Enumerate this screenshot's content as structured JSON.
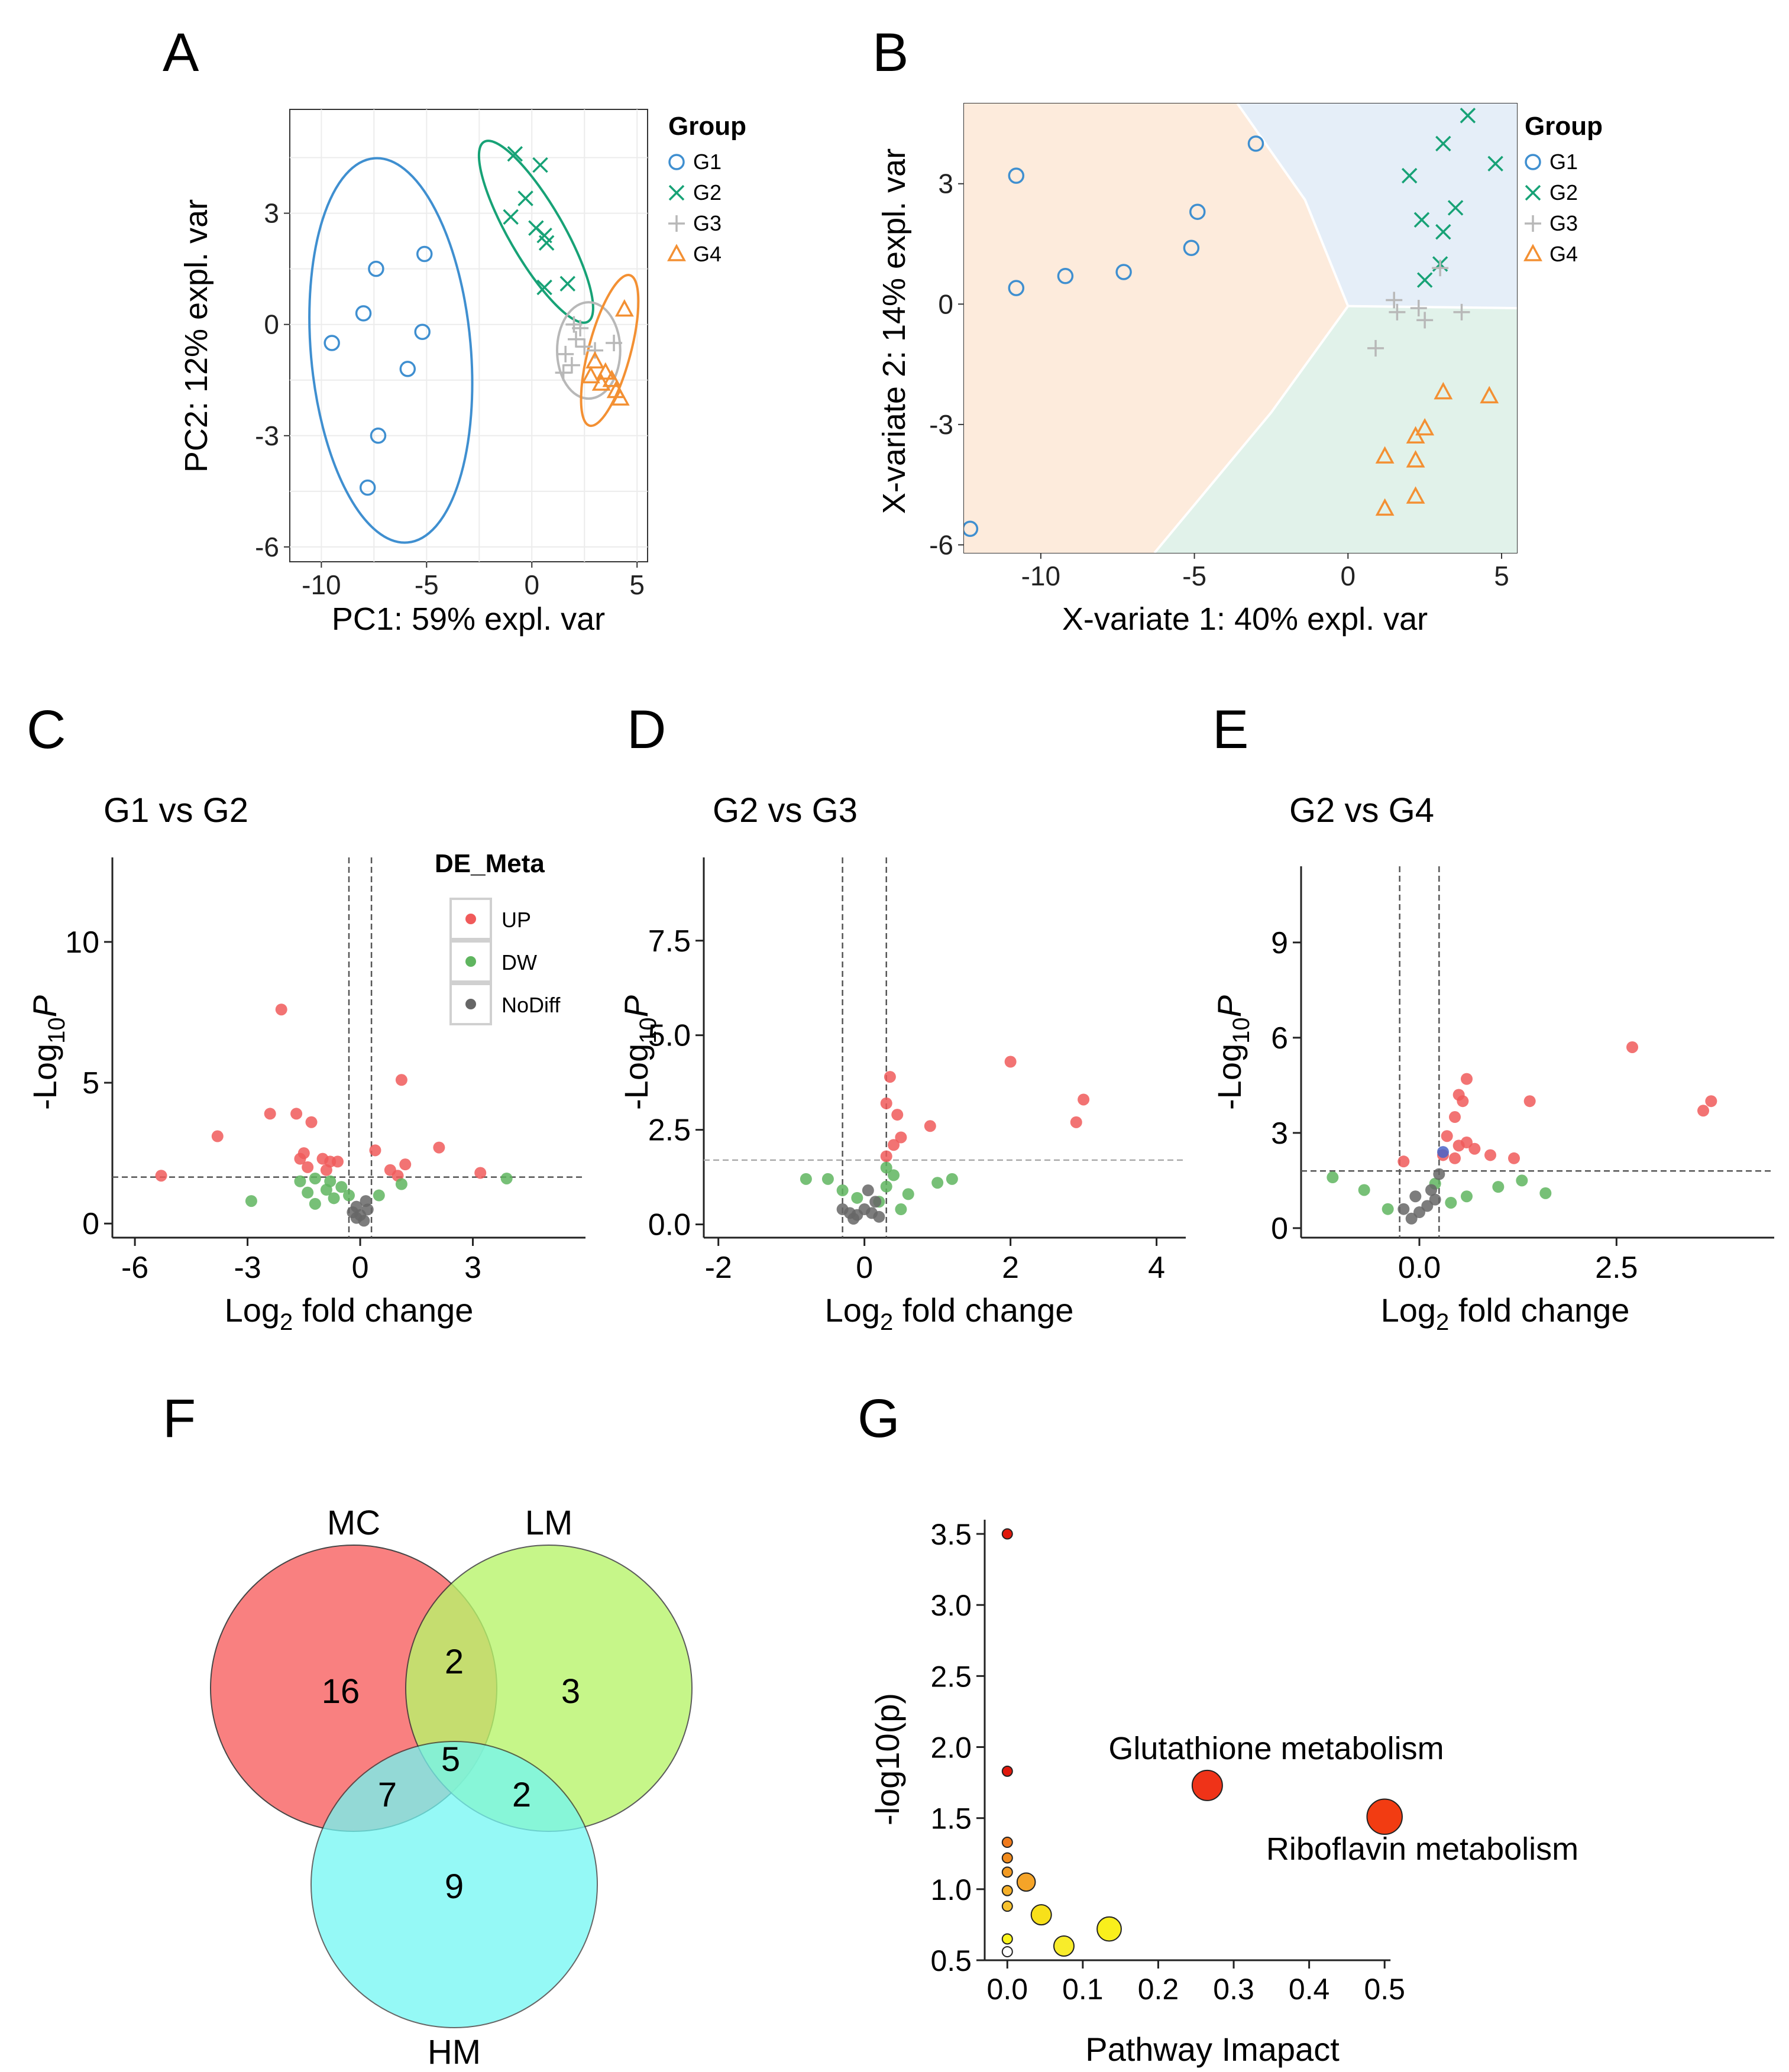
{
  "colors": {
    "G1": "#3f8fd0",
    "G2": "#17a276",
    "G3": "#b8b8b8",
    "G4": "#f39033",
    "up": "#f05a5a",
    "dw": "#5fb55f",
    "nodiff": "#666666"
  },
  "chart_data": [
    {
      "panel": "A",
      "type": "scatter",
      "xlabel": "PC1: 59% expl. var",
      "ylabel": "PC2: 12% expl. var",
      "xlim": [
        -11.5,
        5.5
      ],
      "ylim": [
        -6.4,
        5.8
      ],
      "xticks": [
        -10,
        -5,
        0,
        5
      ],
      "yticks": [
        -6,
        -3,
        0,
        3
      ],
      "legend": {
        "title": "Group",
        "items": [
          "G1",
          "G2",
          "G3",
          "G4"
        ],
        "placement": "right"
      },
      "series": [
        {
          "name": "G1",
          "marker": "circle",
          "points": [
            [
              -7.4,
              1.5
            ],
            [
              -5.1,
              1.9
            ],
            [
              -8.0,
              0.3
            ],
            [
              -5.2,
              -0.2
            ],
            [
              -9.5,
              -0.5
            ],
            [
              -5.9,
              -1.2
            ],
            [
              -7.3,
              -3.0
            ],
            [
              -7.8,
              -4.4
            ]
          ]
        },
        {
          "name": "G2",
          "marker": "x",
          "points": [
            [
              -0.8,
              4.6
            ],
            [
              0.4,
              4.3
            ],
            [
              -0.3,
              3.4
            ],
            [
              -1.0,
              2.9
            ],
            [
              0.2,
              2.6
            ],
            [
              0.7,
              2.2
            ],
            [
              1.7,
              1.1
            ],
            [
              0.6,
              1.0
            ],
            [
              0.6,
              2.4
            ]
          ]
        },
        {
          "name": "G3",
          "marker": "plus",
          "points": [
            [
              2.0,
              0.0
            ],
            [
              2.3,
              -0.1
            ],
            [
              2.1,
              -0.4
            ],
            [
              2.5,
              -0.6
            ],
            [
              1.6,
              -0.8
            ],
            [
              1.9,
              -1.1
            ],
            [
              1.5,
              -1.3
            ],
            [
              3.9,
              -0.5
            ],
            [
              3.0,
              -0.7
            ]
          ]
        },
        {
          "name": "G4",
          "marker": "triangle",
          "points": [
            [
              4.4,
              0.4
            ],
            [
              3.0,
              -1.0
            ],
            [
              3.5,
              -1.3
            ],
            [
              3.8,
              -1.5
            ],
            [
              2.8,
              -1.4
            ],
            [
              4.0,
              -1.8
            ],
            [
              4.2,
              -2.0
            ],
            [
              3.3,
              -1.6
            ]
          ]
        }
      ],
      "ellipses": [
        {
          "group": "G1",
          "center": [
            -6.7,
            -0.7
          ],
          "rx": 3.8,
          "ry": 5.2,
          "angle": -5
        },
        {
          "group": "G2",
          "center": [
            0.2,
            2.5
          ],
          "rx": 1.3,
          "ry": 2.8,
          "angle": -30
        },
        {
          "group": "G3",
          "center": [
            2.7,
            -0.7
          ],
          "rx": 1.5,
          "ry": 1.3,
          "angle": 0
        },
        {
          "group": "G4",
          "center": [
            3.7,
            -0.7
          ],
          "rx": 1.0,
          "ry": 2.1,
          "angle": 15
        }
      ]
    },
    {
      "panel": "B",
      "type": "scatter",
      "xlabel": "X-variate 1: 40% expl. var",
      "ylabel": "X-variate 2: 14% expl. var",
      "xlim": [
        -12.5,
        5.5
      ],
      "ylim": [
        -6.2,
        5.0
      ],
      "xticks": [
        -10,
        -5,
        0,
        5
      ],
      "yticks": [
        -6,
        -3,
        0,
        3
      ],
      "legend": {
        "title": "Group",
        "items": [
          "G1",
          "G2",
          "G3",
          "G4"
        ],
        "placement": "right"
      },
      "background_regions": [
        "G1",
        "G2",
        "G4"
      ],
      "series": [
        {
          "name": "G1",
          "marker": "circle",
          "points": [
            [
              -3.0,
              4.0
            ],
            [
              -10.8,
              3.2
            ],
            [
              -4.9,
              2.3
            ],
            [
              -5.1,
              1.4
            ],
            [
              -7.3,
              0.8
            ],
            [
              -9.2,
              0.7
            ],
            [
              -10.8,
              0.4
            ],
            [
              -12.3,
              -5.6
            ]
          ]
        },
        {
          "name": "G2",
          "marker": "x",
          "points": [
            [
              3.9,
              4.7
            ],
            [
              3.1,
              4.0
            ],
            [
              4.8,
              3.5
            ],
            [
              2.0,
              3.2
            ],
            [
              3.5,
              2.4
            ],
            [
              2.4,
              2.1
            ],
            [
              3.1,
              1.8
            ],
            [
              3.0,
              1.0
            ],
            [
              2.5,
              0.6
            ]
          ]
        },
        {
          "name": "G3",
          "marker": "plus",
          "points": [
            [
              1.5,
              0.1
            ],
            [
              1.6,
              -0.2
            ],
            [
              2.3,
              -0.1
            ],
            [
              2.5,
              -0.4
            ],
            [
              3.7,
              -0.2
            ],
            [
              3.0,
              0.9
            ],
            [
              0.9,
              -1.1
            ]
          ]
        },
        {
          "name": "G4",
          "marker": "triangle",
          "points": [
            [
              3.1,
              -2.2
            ],
            [
              4.6,
              -2.3
            ],
            [
              2.5,
              -3.1
            ],
            [
              2.2,
              -3.3
            ],
            [
              1.2,
              -3.8
            ],
            [
              2.2,
              -3.9
            ],
            [
              2.2,
              -4.8
            ],
            [
              1.2,
              -5.1
            ]
          ]
        }
      ]
    },
    {
      "panel": "C",
      "type": "scatter",
      "title": "G1 vs G2",
      "xlabel": "Log",
      "xlabel_sub": "2",
      "xlabel_rest": " fold change",
      "ylabel": "-Log",
      "ylabel_sub": "10",
      "ylabel_p": "P",
      "xlim": [
        -6.6,
        6.0
      ],
      "ylim": [
        -0.5,
        13.0
      ],
      "xticks": [
        -6,
        -3,
        0,
        3
      ],
      "yticks": [
        0,
        5,
        10
      ],
      "vlines": [
        -0.3,
        0.3
      ],
      "hline": 1.65,
      "legend": {
        "title": "DE_Meta",
        "items": [
          "UP",
          "DW",
          "NoDiff"
        ],
        "placement": "top-right"
      },
      "series": [
        {
          "name": "UP",
          "points": [
            [
              -2.1,
              7.6
            ],
            [
              -3.8,
              3.1
            ],
            [
              -2.4,
              3.9
            ],
            [
              -1.3,
              3.6
            ],
            [
              -1.7,
              3.9
            ],
            [
              1.1,
              5.1
            ],
            [
              2.1,
              2.7
            ],
            [
              3.2,
              1.8
            ],
            [
              -5.3,
              1.7
            ],
            [
              0.4,
              2.6
            ],
            [
              0.8,
              1.9
            ],
            [
              1.2,
              2.1
            ],
            [
              -1.6,
              2.3
            ],
            [
              -1.4,
              2.0
            ],
            [
              -1.0,
              2.3
            ],
            [
              -0.8,
              2.2
            ],
            [
              -0.6,
              2.2
            ],
            [
              -1.5,
              2.5
            ],
            [
              -0.9,
              1.9
            ],
            [
              1.0,
              1.7
            ]
          ]
        },
        {
          "name": "DW",
          "points": [
            [
              -2.9,
              0.8
            ],
            [
              -1.6,
              1.5
            ],
            [
              -1.4,
              1.1
            ],
            [
              -1.2,
              0.7
            ],
            [
              -0.9,
              1.2
            ],
            [
              -0.7,
              0.9
            ],
            [
              -0.5,
              1.3
            ],
            [
              -0.3,
              1.0
            ],
            [
              0.5,
              1.0
            ],
            [
              1.1,
              1.4
            ],
            [
              3.9,
              1.6
            ],
            [
              -1.2,
              1.6
            ],
            [
              -0.8,
              1.5
            ]
          ]
        },
        {
          "name": "NoDiff",
          "points": [
            [
              -0.2,
              0.4
            ],
            [
              -0.1,
              0.2
            ],
            [
              0.0,
              0.3
            ],
            [
              0.1,
              0.1
            ],
            [
              0.2,
              0.5
            ],
            [
              -0.1,
              0.6
            ],
            [
              0.15,
              0.8
            ]
          ]
        }
      ]
    },
    {
      "panel": "D",
      "type": "scatter",
      "title": "G2 vs G3",
      "xlabel": "Log",
      "xlabel_sub": "2",
      "xlabel_rest": " fold change",
      "ylabel": "-Log",
      "ylabel_sub": "10",
      "ylabel_p": "P",
      "xlim": [
        -2.2,
        4.4
      ],
      "ylim": [
        -0.35,
        9.7
      ],
      "xticks": [
        -2,
        0,
        2,
        4
      ],
      "yticks": [
        "0.0",
        "2.5",
        "5.0",
        "7.5"
      ],
      "vlines": [
        -0.3,
        0.3
      ],
      "hline": 1.7,
      "series": [
        {
          "name": "UP",
          "points": [
            [
              2.0,
              4.3
            ],
            [
              3.0,
              3.3
            ],
            [
              2.9,
              2.7
            ],
            [
              0.35,
              3.9
            ],
            [
              0.3,
              3.2
            ],
            [
              0.45,
              2.9
            ],
            [
              0.9,
              2.6
            ],
            [
              0.5,
              2.3
            ],
            [
              0.4,
              2.1
            ],
            [
              0.3,
              1.8
            ]
          ]
        },
        {
          "name": "DW",
          "points": [
            [
              -0.8,
              1.2
            ],
            [
              -0.5,
              1.2
            ],
            [
              0.3,
              1.5
            ],
            [
              0.4,
              1.3
            ],
            [
              1.0,
              1.1
            ],
            [
              1.2,
              1.2
            ],
            [
              0.6,
              0.8
            ],
            [
              0.2,
              0.6
            ],
            [
              -0.3,
              0.9
            ],
            [
              -0.1,
              0.7
            ],
            [
              0.5,
              0.4
            ],
            [
              0.3,
              1.0
            ]
          ]
        },
        {
          "name": "NoDiff",
          "points": [
            [
              -0.2,
              0.3
            ],
            [
              -0.1,
              0.25
            ],
            [
              0.0,
              0.4
            ],
            [
              0.1,
              0.3
            ],
            [
              0.2,
              0.2
            ],
            [
              -0.3,
              0.4
            ],
            [
              0.15,
              0.6
            ],
            [
              0.05,
              0.9
            ],
            [
              -0.15,
              0.15
            ]
          ]
        }
      ]
    },
    {
      "panel": "E",
      "type": "scatter",
      "title": "G2 vs G4",
      "xlabel": "Log",
      "xlabel_sub": "2",
      "xlabel_rest": " fold change",
      "ylabel": "-Log",
      "ylabel_sub": "10",
      "ylabel_p": "P",
      "xlim": [
        -1.5,
        4.5
      ],
      "ylim": [
        -0.3,
        11.4
      ],
      "xticks": [
        "0.0",
        "2.5"
      ],
      "yticks": [
        0,
        3,
        6,
        9
      ],
      "vlines": [
        -0.25,
        0.25
      ],
      "hline": 1.8,
      "series": [
        {
          "name": "UP",
          "points": [
            [
              2.7,
              5.7
            ],
            [
              3.6,
              3.7
            ],
            [
              3.7,
              4.0
            ],
            [
              1.4,
              4.0
            ],
            [
              0.6,
              4.7
            ],
            [
              0.5,
              4.2
            ],
            [
              0.55,
              4.0
            ],
            [
              0.45,
              3.5
            ],
            [
              0.35,
              2.9
            ],
            [
              0.5,
              2.6
            ],
            [
              0.6,
              2.7
            ],
            [
              0.9,
              2.3
            ],
            [
              1.2,
              2.2
            ],
            [
              0.3,
              2.3
            ],
            [
              0.45,
              2.2
            ],
            [
              -0.2,
              2.1
            ],
            [
              0.7,
              2.5
            ]
          ]
        },
        {
          "name": "DW",
          "points": [
            [
              -1.1,
              1.6
            ],
            [
              -0.7,
              1.2
            ],
            [
              0.6,
              1.0
            ],
            [
              1.0,
              1.3
            ],
            [
              1.3,
              1.5
            ],
            [
              1.6,
              1.1
            ],
            [
              0.4,
              0.8
            ],
            [
              -0.4,
              0.6
            ],
            [
              0.2,
              1.4
            ]
          ]
        },
        {
          "name": "NoDiff",
          "points": [
            [
              -0.2,
              0.6
            ],
            [
              -0.1,
              0.3
            ],
            [
              0.0,
              0.5
            ],
            [
              0.1,
              0.7
            ],
            [
              0.2,
              0.9
            ],
            [
              0.15,
              1.2
            ],
            [
              -0.05,
              1.0
            ],
            [
              0.25,
              1.7
            ]
          ]
        }
      ],
      "highlight": {
        "color": "#4a64c8",
        "point": [
          0.3,
          2.4
        ]
      }
    },
    {
      "panel": "F",
      "type": "venn",
      "sets": [
        {
          "name": "MC",
          "color": "#f97373"
        },
        {
          "name": "LM",
          "color": "#b9f56c"
        },
        {
          "name": "HM",
          "color": "#72f7f3"
        }
      ],
      "regions": {
        "MC_only": "16",
        "LM_only": "3",
        "HM_only": "9",
        "MC_LM": "2",
        "MC_HM": "7",
        "LM_HM": "2",
        "all": "5"
      }
    },
    {
      "panel": "G",
      "type": "scatter",
      "xlabel": "Pathway Imapact",
      "ylabel": "-log10(p)",
      "xlim": [
        -0.03,
        0.55
      ],
      "ylim": [
        0.5,
        3.6
      ],
      "xticks": [
        "0.0",
        "0.1",
        "0.2",
        "0.3",
        "0.4",
        "0.5"
      ],
      "yticks": [
        "0.5",
        "1.0",
        "1.5",
        "2.0",
        "2.5",
        "3.0",
        "3.5"
      ],
      "annotations": [
        "Glutathione metabolism",
        "Riboflavin metabolism"
      ],
      "points": [
        {
          "x": 0.0,
          "y": 3.5,
          "size": 1,
          "color": "#e0180c"
        },
        {
          "x": 0.0,
          "y": 1.83,
          "size": 1,
          "color": "#e0180c"
        },
        {
          "x": 0.265,
          "y": 1.73,
          "size": 3,
          "color": "#ef3318"
        },
        {
          "x": 0.5,
          "y": 1.51,
          "size": 3.5,
          "color": "#f23c12"
        },
        {
          "x": 0.0,
          "y": 1.33,
          "size": 1,
          "color": "#f07a1c"
        },
        {
          "x": 0.0,
          "y": 1.22,
          "size": 1,
          "color": "#f08a1c"
        },
        {
          "x": 0.0,
          "y": 1.12,
          "size": 1,
          "color": "#f29a22"
        },
        {
          "x": 0.0,
          "y": 0.99,
          "size": 1,
          "color": "#f5b02a"
        },
        {
          "x": 0.0,
          "y": 0.88,
          "size": 1,
          "color": "#f7c22e"
        },
        {
          "x": 0.025,
          "y": 1.05,
          "size": 1.8,
          "color": "#f5a428"
        },
        {
          "x": 0.045,
          "y": 0.82,
          "size": 2,
          "color": "#f7e01a"
        },
        {
          "x": 0.075,
          "y": 0.6,
          "size": 2,
          "color": "#f8ec2a"
        },
        {
          "x": 0.135,
          "y": 0.72,
          "size": 2.4,
          "color": "#f9ef1c"
        },
        {
          "x": 0.0,
          "y": 0.65,
          "size": 1,
          "color": "#fbf51c"
        },
        {
          "x": 0.0,
          "y": 0.56,
          "size": 1,
          "color": "#ffffff"
        }
      ]
    }
  ]
}
